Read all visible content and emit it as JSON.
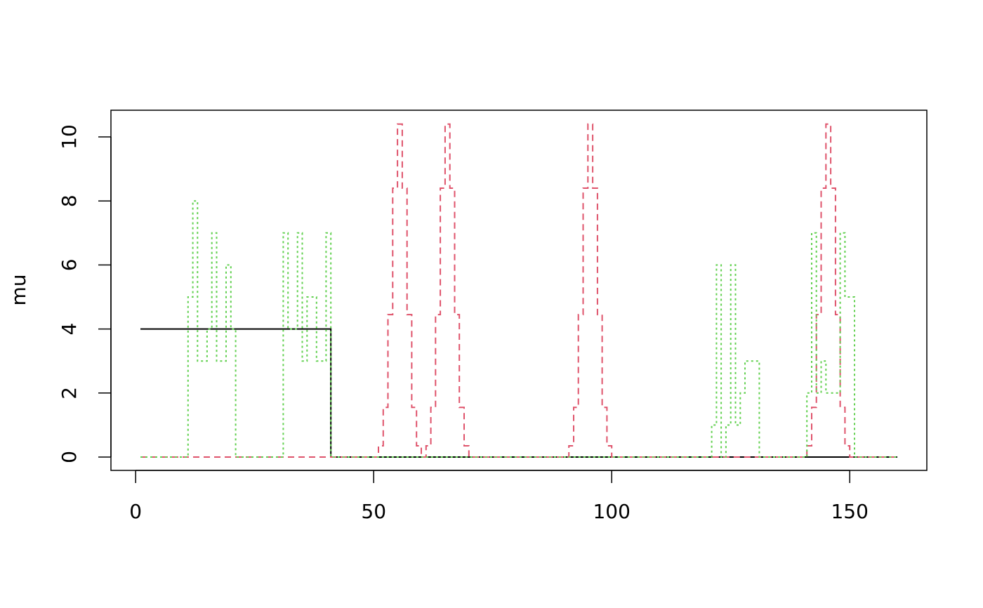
{
  "chart_data": {
    "type": "line",
    "title": "",
    "xlabel": "",
    "ylabel": "mu",
    "xlim": [
      1,
      160
    ],
    "ylim": [
      0,
      10.4
    ],
    "xticks": [
      0,
      50,
      100,
      150
    ],
    "xtick_labels": [
      "0",
      "50",
      "100",
      "150"
    ],
    "yticks": [
      0,
      2,
      4,
      6,
      8,
      10
    ],
    "ytick_labels": [
      "0",
      "2",
      "4",
      "6",
      "8",
      "10"
    ],
    "grid": false,
    "legend": "none",
    "series": [
      {
        "style": "solid",
        "color": "#000000",
        "points": [
          [
            1,
            4
          ],
          [
            41,
            4
          ],
          [
            41,
            0
          ],
          [
            160,
            0
          ]
        ]
      },
      {
        "style": "dashed",
        "color": "#DF536B",
        "points": [
          [
            1,
            0
          ],
          [
            51,
            0
          ],
          [
            51,
            0.35
          ],
          [
            52,
            0.35
          ],
          [
            52,
            1.55
          ],
          [
            53,
            1.55
          ],
          [
            53,
            4.45
          ],
          [
            54,
            4.45
          ],
          [
            54,
            8.4
          ],
          [
            55,
            8.4
          ],
          [
            55,
            10.4
          ],
          [
            56,
            10.4
          ],
          [
            56,
            8.4
          ],
          [
            57,
            8.4
          ],
          [
            57,
            4.45
          ],
          [
            58,
            4.45
          ],
          [
            58,
            1.55
          ],
          [
            59,
            1.55
          ],
          [
            59,
            0.35
          ],
          [
            60,
            0.35
          ],
          [
            60,
            0
          ],
          [
            61,
            0
          ],
          [
            61,
            0.35
          ],
          [
            62,
            0.35
          ],
          [
            62,
            1.55
          ],
          [
            63,
            1.55
          ],
          [
            63,
            4.45
          ],
          [
            64,
            4.45
          ],
          [
            64,
            8.4
          ],
          [
            65,
            8.4
          ],
          [
            65,
            10.4
          ],
          [
            66,
            10.4
          ],
          [
            66,
            8.4
          ],
          [
            67,
            8.4
          ],
          [
            67,
            4.45
          ],
          [
            68,
            4.45
          ],
          [
            68,
            1.55
          ],
          [
            69,
            1.55
          ],
          [
            69,
            0.35
          ],
          [
            70,
            0.35
          ],
          [
            70,
            0
          ],
          [
            91,
            0
          ],
          [
            91,
            0.35
          ],
          [
            92,
            0.35
          ],
          [
            92,
            1.55
          ],
          [
            93,
            1.55
          ],
          [
            93,
            4.45
          ],
          [
            94,
            4.45
          ],
          [
            94,
            8.4
          ],
          [
            95,
            8.4
          ],
          [
            95,
            10.4
          ],
          [
            96,
            10.4
          ],
          [
            96,
            8.4
          ],
          [
            97,
            8.4
          ],
          [
            97,
            4.45
          ],
          [
            98,
            4.45
          ],
          [
            98,
            1.55
          ],
          [
            99,
            1.55
          ],
          [
            99,
            0.35
          ],
          [
            100,
            0.35
          ],
          [
            100,
            0
          ],
          [
            141,
            0
          ],
          [
            141,
            0.35
          ],
          [
            142,
            0.35
          ],
          [
            142,
            1.55
          ],
          [
            143,
            1.55
          ],
          [
            143,
            4.45
          ],
          [
            144,
            4.45
          ],
          [
            144,
            8.4
          ],
          [
            145,
            8.4
          ],
          [
            145,
            10.4
          ],
          [
            146,
            10.4
          ],
          [
            146,
            8.4
          ],
          [
            147,
            8.4
          ],
          [
            147,
            4.45
          ],
          [
            148,
            4.45
          ],
          [
            148,
            1.55
          ],
          [
            149,
            1.55
          ],
          [
            149,
            0.35
          ],
          [
            150,
            0.35
          ],
          [
            150,
            0
          ],
          [
            160,
            0
          ]
        ]
      },
      {
        "style": "dotted",
        "color": "#61D04F",
        "points": [
          [
            1,
            0
          ],
          [
            11,
            0
          ],
          [
            11,
            5
          ],
          [
            12,
            5
          ],
          [
            12,
            8
          ],
          [
            13,
            8
          ],
          [
            13,
            3
          ],
          [
            15,
            3
          ],
          [
            15,
            4
          ],
          [
            16,
            4
          ],
          [
            16,
            7
          ],
          [
            17,
            7
          ],
          [
            17,
            3
          ],
          [
            19,
            3
          ],
          [
            19,
            6
          ],
          [
            20,
            6
          ],
          [
            20,
            4
          ],
          [
            21,
            4
          ],
          [
            21,
            0
          ],
          [
            31,
            0
          ],
          [
            31,
            7
          ],
          [
            32,
            7
          ],
          [
            32,
            4
          ],
          [
            34,
            4
          ],
          [
            34,
            7
          ],
          [
            35,
            7
          ],
          [
            35,
            3
          ],
          [
            36,
            3
          ],
          [
            36,
            5
          ],
          [
            38,
            5
          ],
          [
            38,
            3
          ],
          [
            40,
            3
          ],
          [
            40,
            7
          ],
          [
            41,
            7
          ],
          [
            41,
            0
          ],
          [
            121,
            0
          ],
          [
            121,
            1
          ],
          [
            122,
            1
          ],
          [
            122,
            6
          ],
          [
            123,
            6
          ],
          [
            123,
            0
          ],
          [
            124,
            0
          ],
          [
            124,
            1
          ],
          [
            125,
            1
          ],
          [
            125,
            6
          ],
          [
            126,
            6
          ],
          [
            126,
            1
          ],
          [
            127,
            1
          ],
          [
            127,
            2
          ],
          [
            128,
            2
          ],
          [
            128,
            3
          ],
          [
            131,
            3
          ],
          [
            131,
            0
          ],
          [
            141,
            0
          ],
          [
            141,
            2
          ],
          [
            142,
            2
          ],
          [
            142,
            7
          ],
          [
            143,
            7
          ],
          [
            143,
            2
          ],
          [
            144,
            2
          ],
          [
            144,
            3
          ],
          [
            145,
            3
          ],
          [
            145,
            2
          ],
          [
            148,
            2
          ],
          [
            148,
            7
          ],
          [
            149,
            7
          ],
          [
            149,
            5
          ],
          [
            151,
            5
          ],
          [
            151,
            0
          ],
          [
            160,
            0
          ]
        ]
      }
    ]
  }
}
